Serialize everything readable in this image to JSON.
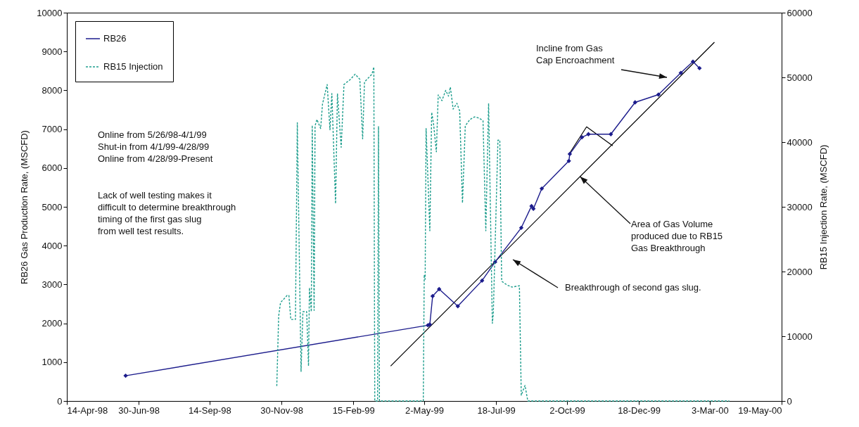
{
  "chart_data": {
    "type": "line",
    "ylabel": "RB26 Gas Production Rate, (MSCFD)",
    "y2label": "RB15 Injection Rate, (MSCFD)",
    "xlim": [
      "1998-04-14",
      "2000-05-19"
    ],
    "xticks": [
      {
        "value": "1998-04-14",
        "label": "14-Apr-98"
      },
      {
        "value": "1998-06-30",
        "label": "30-Jun-98"
      },
      {
        "value": "1998-09-14",
        "label": "14-Sep-98"
      },
      {
        "value": "1998-11-30",
        "label": "30-Nov-98"
      },
      {
        "value": "1999-02-15",
        "label": "15-Feb-99"
      },
      {
        "value": "1999-05-02",
        "label": "2-May-99"
      },
      {
        "value": "1999-07-18",
        "label": "18-Jul-99"
      },
      {
        "value": "1999-10-02",
        "label": "2-Oct-99"
      },
      {
        "value": "1999-12-18",
        "label": "18-Dec-99"
      },
      {
        "value": "2000-03-03",
        "label": "3-Mar-00"
      },
      {
        "value": "2000-05-19",
        "label": "19-May-00"
      }
    ],
    "ylim": [
      0,
      10000
    ],
    "yticks": [
      0,
      1000,
      2000,
      3000,
      4000,
      5000,
      6000,
      7000,
      8000,
      9000,
      10000
    ],
    "y2lim": [
      0,
      60000
    ],
    "y2ticks": [
      0,
      10000,
      20000,
      30000,
      40000,
      50000,
      60000
    ],
    "legend": "top left",
    "series": [
      {
        "name": "RB26",
        "color": "#1c1c8c",
        "marker": "diamond",
        "line_style": "solid",
        "x": [
          "1998-06-16",
          "1999-05-06",
          "1999-05-08",
          "1999-05-11",
          "1999-05-18",
          "1999-06-07",
          "1999-07-03",
          "1999-07-17",
          "1999-08-14",
          "1999-08-25",
          "1999-08-27",
          "1999-09-05",
          "1999-10-04",
          "1999-10-05",
          "1999-10-18",
          "1999-10-25",
          "1999-11-18",
          "1999-12-14",
          "2000-01-08",
          "2000-02-01",
          "2000-02-14",
          "2000-02-21"
        ],
        "values": [
          650,
          1950,
          1970,
          2700,
          2880,
          2440,
          3100,
          3580,
          4460,
          5020,
          4950,
          5470,
          6180,
          6360,
          6790,
          6870,
          6870,
          7690,
          7890,
          8450,
          8740,
          8570
        ]
      },
      {
        "name": "RB15 Injection",
        "color": "#1f9e8e",
        "axis": "y2",
        "marker": "none",
        "line_style": "dashed",
        "x": [
          "1998-11-25",
          "1998-11-27",
          "1998-11-29",
          "1998-12-06",
          "1998-12-08",
          "1998-12-10",
          "1998-12-15",
          "1998-12-17",
          "1998-12-21",
          "1998-12-23",
          "1998-12-27",
          "1998-12-29",
          "1998-12-30",
          "1999-01-01",
          "1999-01-02",
          "1999-01-04",
          "1999-01-05",
          "1999-01-07",
          "1999-01-11",
          "1999-01-13",
          "1999-01-18",
          "1999-01-21",
          "1999-01-23",
          "1999-01-27",
          "1999-01-29",
          "1999-02-02",
          "1999-02-05",
          "1999-02-12",
          "1999-02-17",
          "1999-02-22",
          "1999-02-25",
          "1999-02-27",
          "1999-03-07",
          "1999-03-09",
          "1999-03-10",
          "1999-03-13",
          "1999-03-14",
          "1999-03-15",
          "1999-05-01",
          "1999-05-02",
          "1999-05-03",
          "1999-05-04",
          "1999-05-08",
          "1999-05-10",
          "1999-05-12",
          "1999-05-15",
          "1999-05-17",
          "1999-05-21",
          "1999-05-25",
          "1999-05-28",
          "1999-05-30",
          "1999-06-02",
          "1999-06-06",
          "1999-06-09",
          "1999-06-12",
          "1999-06-15",
          "1999-06-20",
          "1999-06-25",
          "1999-06-30",
          "1999-07-04",
          "1999-07-07",
          "1999-07-10",
          "1999-07-14",
          "1999-07-15",
          "1999-07-20",
          "1999-07-22",
          "1999-07-24",
          "1999-07-30",
          "1999-08-04",
          "1999-08-12",
          "1999-08-14",
          "1999-08-18",
          "1999-08-21",
          "2000-03-24"
        ],
        "values": [
          2300,
          13100,
          15200,
          16300,
          16300,
          12600,
          12600,
          43000,
          4500,
          13800,
          13800,
          5400,
          17500,
          13800,
          42600,
          14000,
          42500,
          43500,
          42100,
          45900,
          48900,
          41900,
          47500,
          30500,
          47500,
          39200,
          48900,
          49700,
          50500,
          49700,
          40500,
          49300,
          50500,
          51600,
          0,
          0,
          42400,
          0,
          0,
          19500,
          18800,
          42100,
          26300,
          44600,
          42800,
          38500,
          47300,
          46400,
          48000,
          47100,
          48500,
          45100,
          46000,
          44800,
          30600,
          42500,
          43500,
          43900,
          43700,
          43300,
          26300,
          46000,
          12000,
          13400,
          40300,
          40300,
          18500,
          17900,
          17600,
          17800,
          900,
          2400,
          0,
          0
        ]
      },
      {
        "color": "#000000",
        "marker": "none",
        "line_style": "solid",
        "x": [
          "1999-03-27",
          "2000-03-08"
        ],
        "values": [
          900,
          9240
        ]
      },
      {
        "color": "#000000",
        "marker": "none",
        "line_style": "solid",
        "x": [
          "1999-10-04",
          "1999-10-23",
          "1999-11-20"
        ],
        "values": [
          6350,
          7060,
          6570
        ]
      }
    ],
    "annotations": [
      "Online from 5/26/98-4/1/99\nShut-in from 4/1/99-4/28/99\nOnline from 4/28/99-Present",
      "Lack of well testing makes it\ndifficult to determine breakthrough\ntiming of the first gas slug\n from well test results.",
      "Incline from Gas\nCap Encroachment",
      {
        "text": "Area of Gas Volume\nproduced due to RB15\nGas Breakthrough",
        "x": "1999-10-16",
        "y": 5780
      },
      "Breakthrough of second gas slug."
    ]
  }
}
